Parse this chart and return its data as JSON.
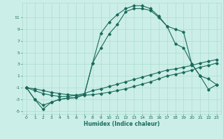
{
  "xlabel": "Humidex (Indice chaleur)",
  "xlim": [
    -0.5,
    23.5
  ],
  "ylim": [
    -5.5,
    13.5
  ],
  "yticks": [
    -5,
    -3,
    -1,
    1,
    3,
    5,
    7,
    9,
    11
  ],
  "xticks": [
    0,
    1,
    2,
    3,
    4,
    5,
    6,
    7,
    8,
    9,
    10,
    11,
    12,
    13,
    14,
    15,
    16,
    17,
    18,
    19,
    20,
    21,
    22,
    23
  ],
  "bg_color": "#cceee8",
  "line_color": "#1a6b5a",
  "grid_color": "#aaddcc",
  "series1_x": [
    0,
    1,
    2,
    3,
    4,
    5,
    6,
    7,
    8,
    9,
    10,
    11,
    12,
    13,
    14,
    15,
    16,
    17,
    18,
    19,
    20,
    21,
    22,
    23
  ],
  "series1_y": [
    -1,
    -3,
    -4.7,
    -3.5,
    -3,
    -2.8,
    -2.7,
    -2.2,
    3.2,
    8.3,
    10.2,
    11.5,
    12.5,
    13,
    13,
    12.5,
    11.2,
    9.5,
    9,
    8.5,
    3,
    1,
    0.5,
    -0.5
  ],
  "series2_x": [
    0,
    1,
    2,
    3,
    4,
    5,
    6,
    7,
    8,
    9,
    10,
    11,
    12,
    13,
    14,
    15,
    16,
    17,
    18,
    19,
    20,
    21,
    22,
    23
  ],
  "series2_y": [
    -1,
    -3,
    -4,
    -3.5,
    -3,
    -2.8,
    -2.7,
    -2.2,
    3.2,
    5.8,
    8.2,
    9.8,
    12,
    12.5,
    12.5,
    12.2,
    11,
    9.5,
    6.5,
    5.8,
    3.1,
    1,
    -1.3,
    -0.5
  ],
  "series3_x": [
    0,
    1,
    2,
    3,
    4,
    5,
    6,
    7,
    8,
    9,
    10,
    11,
    12,
    13,
    14,
    15,
    16,
    17,
    18,
    19,
    20,
    21,
    22,
    23
  ],
  "series3_y": [
    -1,
    -1.5,
    -2.0,
    -2.3,
    -2.5,
    -2.5,
    -2.3,
    -2.0,
    -1.5,
    -1.2,
    -0.8,
    -0.4,
    0.0,
    0.4,
    0.8,
    1.2,
    1.6,
    2.0,
    2.2,
    2.5,
    2.8,
    3.2,
    3.5,
    3.8
  ],
  "series4_x": [
    0,
    1,
    2,
    3,
    4,
    5,
    6,
    7,
    8,
    9,
    10,
    11,
    12,
    13,
    14,
    15,
    16,
    17,
    18,
    19,
    20,
    21,
    22,
    23
  ],
  "series4_y": [
    -1,
    -1.2,
    -1.5,
    -1.8,
    -2.0,
    -2.2,
    -2.3,
    -2.3,
    -2.2,
    -2.0,
    -1.8,
    -1.5,
    -1.2,
    -0.8,
    -0.4,
    0.0,
    0.5,
    1.0,
    1.3,
    1.6,
    2.0,
    2.5,
    2.8,
    3.2
  ]
}
